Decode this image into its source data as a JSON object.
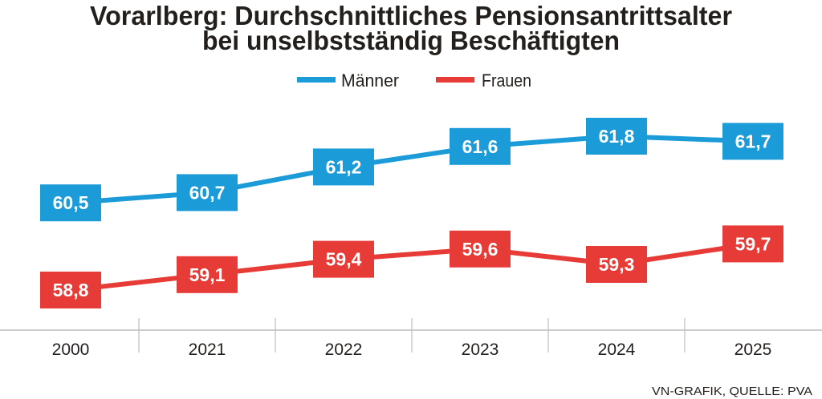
{
  "chart_data": {
    "type": "line",
    "title": "Vorarlberg: Durchschnittliches Pensionsantrittsalter",
    "subtitle": "bei unselbstständig Beschäftigten",
    "categories": [
      "2000",
      "2021",
      "2022",
      "2023",
      "2024",
      "2025"
    ],
    "series": [
      {
        "name": "Männer",
        "color": "#1b9bd7",
        "values": [
          60.5,
          60.7,
          61.2,
          61.6,
          61.8,
          61.7
        ],
        "labels": [
          "60,5",
          "60,7",
          "61,2",
          "61,6",
          "61,8",
          "61,7"
        ]
      },
      {
        "name": "Frauen",
        "color": "#e63b36",
        "values": [
          58.8,
          59.1,
          59.4,
          59.6,
          59.3,
          59.7
        ],
        "labels": [
          "58,8",
          "59,1",
          "59,4",
          "59,6",
          "59,3",
          "59,7"
        ]
      }
    ],
    "legend_position": "top-center",
    "grid": false,
    "yaxis_visible": false,
    "source": "VN-GRAFIK, QUELLE: PVA"
  }
}
